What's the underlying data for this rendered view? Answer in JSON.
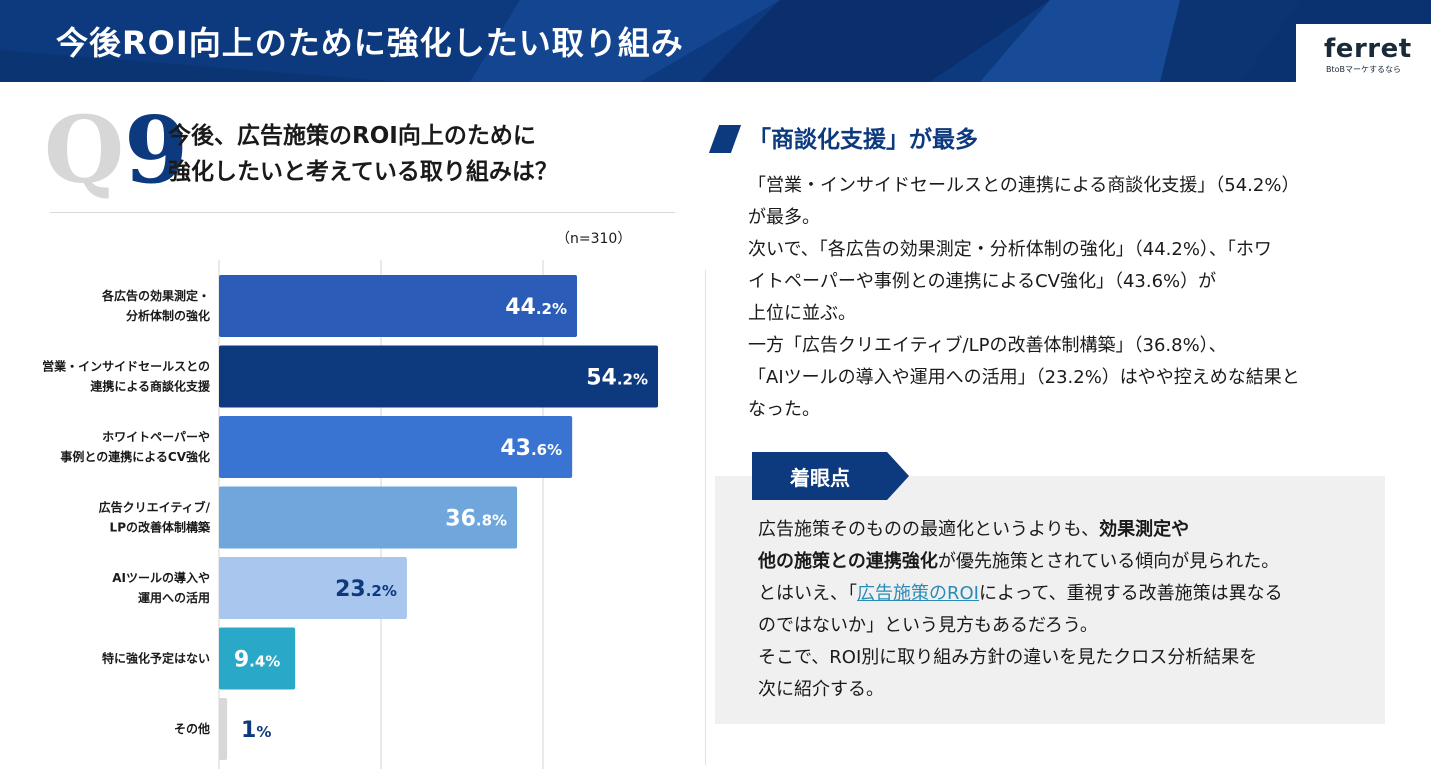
{
  "header": {
    "title": "今後ROI向上のために強化したい取り組み",
    "logo": "ferret",
    "tagline": "BtoBマーケするなら"
  },
  "question": {
    "label_q": "Q",
    "label_num": "9",
    "line1": "今後、広告施策のROI向上のために",
    "line2": "強化したいと考えている取り組みは？",
    "sample_size": "（n=310）"
  },
  "chart_data": {
    "type": "bar",
    "orientation": "horizontal",
    "title": "今後、広告施策のROI向上のために強化したいと考えている取り組みは？",
    "categories": [
      [
        "各広告の効果測定・",
        "分析体制の強化"
      ],
      [
        "営業・インサイドセールスとの",
        "連携による商談化支援"
      ],
      [
        "ホワイトペーパーや",
        "事例との連携によるCV強化"
      ],
      [
        "広告クリエイティブ/",
        "LPの改善体制構築"
      ],
      [
        "AIツールの導入や",
        "運用への活用"
      ],
      [
        "特に強化予定はない"
      ],
      [
        "その他"
      ]
    ],
    "values": [
      44.2,
      54.2,
      43.6,
      36.8,
      23.2,
      9.4,
      1
    ],
    "value_labels": [
      [
        "44",
        ".2%"
      ],
      [
        "54",
        ".2%"
      ],
      [
        "43",
        ".6%"
      ],
      [
        "36",
        ".8%"
      ],
      [
        "23",
        ".2%"
      ],
      [
        "9",
        ".4%"
      ],
      [
        "1",
        "%"
      ]
    ],
    "colors": [
      "#2a5cb8",
      "#0d3a7e",
      "#3a74d2",
      "#6fa6dc",
      "#a8c6ee",
      "#2aa8c8",
      "#d8d8d8"
    ],
    "label_colors": [
      "#ffffff",
      "#ffffff",
      "#ffffff",
      "#ffffff",
      "#0d3a7e",
      "#ffffff",
      "#0d3a7e"
    ],
    "unit": "%",
    "xlim": [
      0,
      60
    ],
    "gridlines_at": [
      20,
      40
    ]
  },
  "headline": "「商談化支援」が最多",
  "summary_lines": [
    "「営業・インサイドセールスとの連携による商談化支援」（54.2%）",
    "が最多。",
    "次いで、「各広告の効果測定・分析体制の強化」（44.2%）、「ホワ",
    "イトペーパーや事例との連携によるCV強化」（43.6%）が",
    "上位に並ぶ。",
    "一方「広告クリエイティブ/LPの改善体制構築」（36.8%）、",
    "「AIツールの導入や運用への活用」（23.2%）はやや控えめな結果と",
    "なった。"
  ],
  "point": {
    "tag": "着眼点",
    "l1_a": "広告施策そのものの最適化というよりも、",
    "l1_b": "効果測定や",
    "l2_a": "他の施策との連携強化",
    "l2_b": "が優先施策とされている傾向が見られた。",
    "l3_a": "とはいえ、「",
    "l3_link": "広告施策のROI",
    "l3_b": "によって、重視する改善施策は異なる",
    "l4": "のではないか」という見方もあるだろう。",
    "l5": "そこで、ROI別に取り組み方針の違いを見たクロス分析結果を",
    "l6": "次に紹介する。"
  }
}
